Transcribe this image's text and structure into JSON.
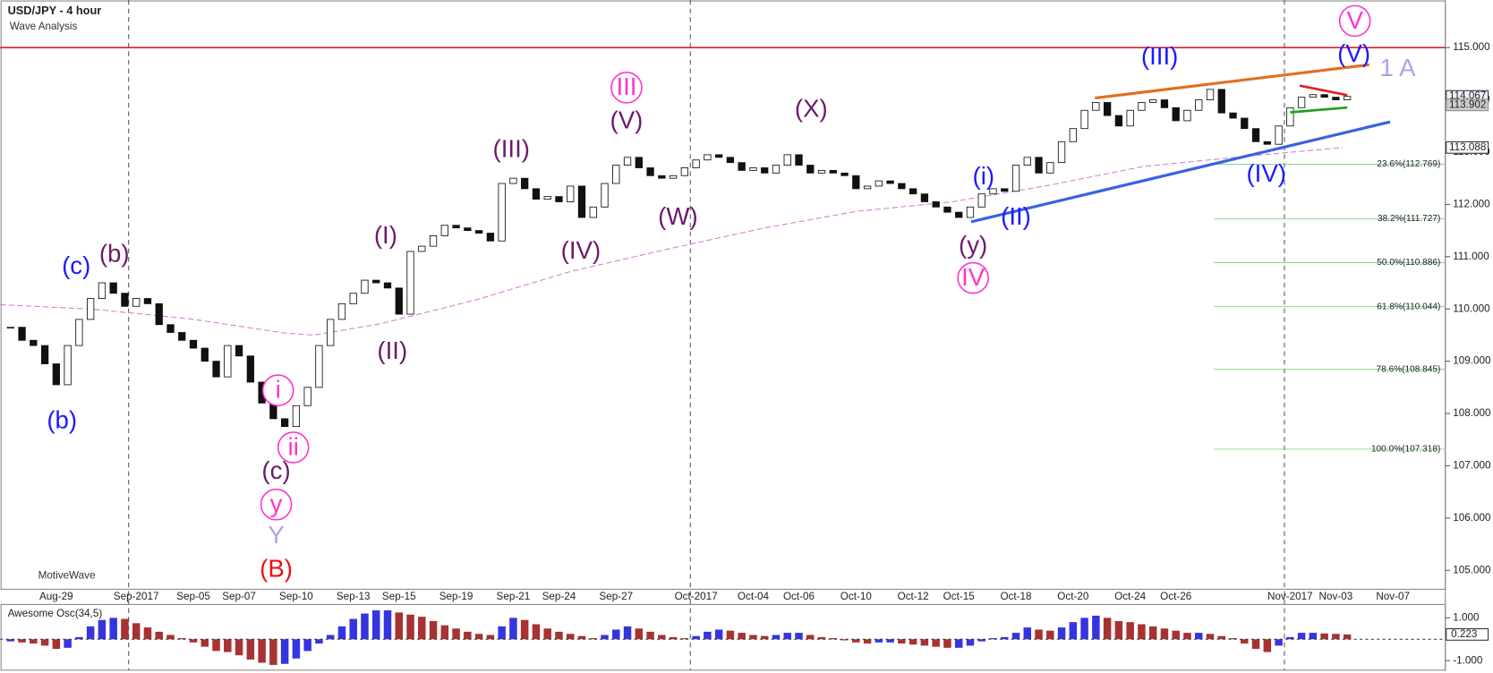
{
  "header": {
    "title": "USD/JPY - 4 hour",
    "subtitle": "Wave Analysis",
    "watermark": "MotiveWave"
  },
  "chart_data": [
    {
      "type": "candlestick",
      "categories": [
        null,
        null,
        null,
        null,
        "Aug-29",
        null,
        null,
        null,
        null,
        null,
        null,
        "Sep-2017",
        null,
        null,
        null,
        null,
        "Sep-05",
        null,
        null,
        null,
        "Sep-07",
        null,
        null,
        null,
        null,
        "Sep-10",
        null,
        null,
        null,
        null,
        "Sep-13",
        null,
        null,
        null,
        "Sep-15",
        null,
        null,
        null,
        null,
        "Sep-19",
        null,
        null,
        null,
        null,
        "Sep-21",
        null,
        null,
        null,
        "Sep-24",
        null,
        null,
        null,
        null,
        "Sep-27",
        null,
        null,
        null,
        null,
        null,
        null,
        "Oct-2017",
        null,
        null,
        null,
        null,
        "Oct-04",
        null,
        null,
        null,
        "Oct-06",
        null,
        null,
        null,
        null,
        "Oct-10",
        null,
        null,
        null,
        null,
        "Oct-12",
        null,
        null,
        null,
        "Oct-15",
        null,
        null,
        null,
        null,
        "Oct-18",
        null,
        null,
        null,
        null,
        "Oct-20",
        null,
        null,
        null,
        null,
        "Oct-24",
        null,
        null,
        null,
        "Oct-26",
        null,
        null,
        null,
        null,
        null,
        null,
        null,
        null,
        null,
        "Nov-2017",
        null,
        null,
        null,
        "Nov-03",
        null,
        null,
        null,
        null,
        "Nov-07",
        null,
        null,
        null,
        null
      ],
      "close": [
        109.65,
        109.4,
        109.3,
        108.95,
        108.55,
        109.3,
        109.8,
        110.2,
        110.5,
        110.3,
        110.05,
        110.2,
        110.1,
        109.7,
        109.55,
        109.4,
        109.25,
        109.0,
        108.7,
        109.3,
        109.1,
        108.6,
        108.2,
        107.9,
        107.75,
        108.15,
        108.5,
        109.3,
        109.8,
        110.1,
        110.3,
        110.55,
        110.5,
        110.4,
        109.9,
        111.1,
        111.2,
        111.4,
        111.6,
        111.55,
        111.5,
        111.45,
        111.3,
        112.4,
        112.5,
        112.3,
        112.1,
        112.15,
        112.05,
        112.35,
        111.75,
        111.95,
        112.4,
        112.75,
        112.9,
        112.7,
        112.55,
        112.5,
        112.55,
        112.7,
        112.85,
        112.95,
        112.9,
        112.8,
        112.65,
        112.7,
        112.6,
        112.75,
        112.95,
        112.75,
        112.6,
        112.65,
        112.6,
        112.55,
        112.3,
        112.35,
        112.45,
        112.4,
        112.3,
        112.2,
        112.05,
        111.95,
        111.85,
        111.75,
        111.95,
        112.2,
        112.3,
        112.25,
        112.75,
        112.9,
        112.6,
        112.8,
        113.2,
        113.45,
        113.8,
        113.95,
        113.7,
        113.5,
        113.8,
        113.95,
        114.0,
        113.85,
        113.6,
        113.8,
        114.0,
        114.2,
        113.75,
        113.65,
        113.45,
        113.2,
        113.15,
        113.5,
        113.85,
        114.05,
        114.1,
        114.05,
        114.0,
        114.067,
        null,
        null,
        null,
        null,
        null,
        null,
        null,
        null
      ],
      "ylim": [
        104.62,
        115.91
      ],
      "yticks": [
        {
          "value": 115,
          "label": "115.000"
        },
        {
          "value": 114,
          "label": "114.000"
        },
        {
          "value": 113,
          "label": "113.000"
        },
        {
          "value": 112,
          "label": "112.000"
        },
        {
          "value": 111,
          "label": "111.000"
        },
        {
          "value": 110,
          "label": "110.000"
        },
        {
          "value": 109,
          "label": "109.000"
        },
        {
          "value": 108,
          "label": "108.000"
        },
        {
          "value": 107,
          "label": "107.000"
        },
        {
          "value": 106,
          "label": "106.000"
        },
        {
          "value": 105,
          "label": "105.000"
        }
      ],
      "price_labels": [
        {
          "value": 114.067,
          "label": "114.067"
        },
        {
          "value": 113.902,
          "label": "113.902"
        },
        {
          "value": 113.088,
          "label": "113.088"
        }
      ],
      "fib_levels": [
        {
          "value": 112.769,
          "label": "23.6%(112.769)"
        },
        {
          "value": 111.727,
          "label": "38.2%(111.727)"
        },
        {
          "value": 110.886,
          "label": "50.0%(110.886)"
        },
        {
          "value": 110.044,
          "label": "61.8%(110.044)"
        },
        {
          "value": 108.845,
          "label": "78.6%(108.845)"
        },
        {
          "value": 107.318,
          "label": "100.0%(107.318)"
        }
      ],
      "annotations": [
        {
          "text": "(c)",
          "color": "#1a1aff"
        },
        {
          "text": "(b)",
          "color": "#6b1a6b"
        },
        {
          "text": "(b)",
          "color": "#1a1aff"
        },
        {
          "text": "(I)",
          "color": "#6b1a6b"
        },
        {
          "text": "(II)",
          "color": "#6b1a6b"
        },
        {
          "text": "(III)",
          "color": "#6b1a6b"
        },
        {
          "text": "(IV)",
          "color": "#6b1a6b"
        },
        {
          "text": "(V)",
          "color": "#6b1a6b"
        },
        {
          "text": "III",
          "color": "#ff33cc",
          "circled": true
        },
        {
          "text": "(W)",
          "color": "#6b1a6b"
        },
        {
          "text": "(X)",
          "color": "#6b1a6b"
        },
        {
          "text": "(y)",
          "color": "#6b1a6b"
        },
        {
          "text": "IV",
          "color": "#ff33cc",
          "circled": true
        },
        {
          "text": "(i)",
          "color": "#1a1aff"
        },
        {
          "text": "(II)",
          "color": "#1a1aff"
        },
        {
          "text": "(III)",
          "color": "#1a1aff"
        },
        {
          "text": "(IV)",
          "color": "#1a1aff"
        },
        {
          "text": "(V)",
          "color": "#1a1aff"
        },
        {
          "text": "V",
          "color": "#ff33cc",
          "circled": true
        },
        {
          "text": "1 A",
          "color": "#b0a0e8"
        },
        {
          "text": "i",
          "color": "#ff33cc",
          "circled": true
        },
        {
          "text": "ii",
          "color": "#ff33cc",
          "circled": true
        },
        {
          "text": "(c)",
          "color": "#6b1a6b"
        },
        {
          "text": "y",
          "color": "#ff33cc",
          "circled": true
        },
        {
          "text": "Y",
          "color": "#b0a0e8"
        },
        {
          "text": "(B)",
          "color": "#ee1111"
        }
      ]
    },
    {
      "type": "bar",
      "title": "Awesome Osc(34,5)",
      "up_color": "#3535e0",
      "down_color": "#a83232",
      "values": [
        -0.1,
        -0.15,
        -0.2,
        -0.3,
        -0.45,
        -0.4,
        0.1,
        0.6,
        0.9,
        1.0,
        0.95,
        0.75,
        0.55,
        0.35,
        0.2,
        0.05,
        -0.15,
        -0.35,
        -0.55,
        -0.6,
        -0.75,
        -0.95,
        -1.1,
        -1.2,
        -1.15,
        -0.9,
        -0.55,
        -0.2,
        0.2,
        0.6,
        0.95,
        1.2,
        1.35,
        1.35,
        1.25,
        1.15,
        1.05,
        0.85,
        0.65,
        0.5,
        0.35,
        0.25,
        0.2,
        0.6,
        1.0,
        0.9,
        0.7,
        0.5,
        0.35,
        0.25,
        0.15,
        0.05,
        0.2,
        0.45,
        0.6,
        0.5,
        0.35,
        0.2,
        0.1,
        0.05,
        0.15,
        0.35,
        0.45,
        0.4,
        0.3,
        0.2,
        0.15,
        0.2,
        0.3,
        0.3,
        0.2,
        0.1,
        0.05,
        -0.05,
        -0.15,
        -0.2,
        -0.15,
        -0.15,
        -0.2,
        -0.25,
        -0.3,
        -0.35,
        -0.4,
        -0.4,
        -0.3,
        -0.1,
        0.05,
        0.1,
        0.3,
        0.55,
        0.45,
        0.4,
        0.55,
        0.8,
        1.0,
        1.1,
        1.0,
        0.85,
        0.8,
        0.7,
        0.6,
        0.5,
        0.4,
        0.3,
        0.3,
        0.25,
        0.15,
        0.05,
        -0.2,
        -0.45,
        -0.6,
        -0.3,
        0.1,
        0.3,
        0.3,
        0.27,
        0.25,
        0.223
      ],
      "ylim": [
        -1.4,
        1.58
      ],
      "yticks": [
        {
          "value": 1,
          "label": "1.000"
        },
        {
          "value": -1,
          "label": "-1.000"
        }
      ],
      "current_value": {
        "value": 0.223,
        "label": "0.223"
      }
    }
  ]
}
